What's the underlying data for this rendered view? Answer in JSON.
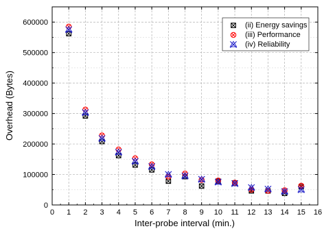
{
  "chart_data": {
    "type": "scatter",
    "title": "",
    "xlabel": "Inter-probe interval (min.)",
    "ylabel": "Overhead (Bytes)",
    "xlim": [
      0,
      16
    ],
    "ylim": [
      0,
      650000
    ],
    "xticks": [
      0,
      1,
      2,
      3,
      4,
      5,
      6,
      7,
      8,
      9,
      10,
      11,
      12,
      13,
      14,
      15,
      16
    ],
    "yticks": [
      0,
      100000,
      200000,
      300000,
      400000,
      500000,
      600000
    ],
    "x": [
      1,
      2,
      3,
      4,
      5,
      6,
      7,
      8,
      9,
      10,
      11,
      12,
      13,
      14,
      15
    ],
    "grid": true,
    "legend_position": "top-right",
    "series": [
      {
        "name": "(ii) Energy savings",
        "marker": "boxed-x",
        "color": "#000000",
        "values": [
          562000,
          292000,
          208000,
          162000,
          131000,
          115000,
          78000,
          93000,
          62000,
          78000,
          72000,
          46000,
          46000,
          38000,
          60000
        ]
      },
      {
        "name": "(iii) Performance",
        "marker": "circled-x",
        "color": "#ff0000",
        "values": [
          585000,
          313000,
          228000,
          182000,
          153000,
          133000,
          93000,
          103000,
          82000,
          80000,
          73000,
          50000,
          46000,
          48000,
          63000
        ]
      },
      {
        "name": "(iv) Reliability",
        "marker": "star",
        "color": "#1f1fc8",
        "values": [
          575000,
          303000,
          218000,
          173000,
          143000,
          126000,
          100000,
          95000,
          84000,
          75000,
          70000,
          57000,
          52000,
          44000,
          50000
        ]
      }
    ]
  }
}
